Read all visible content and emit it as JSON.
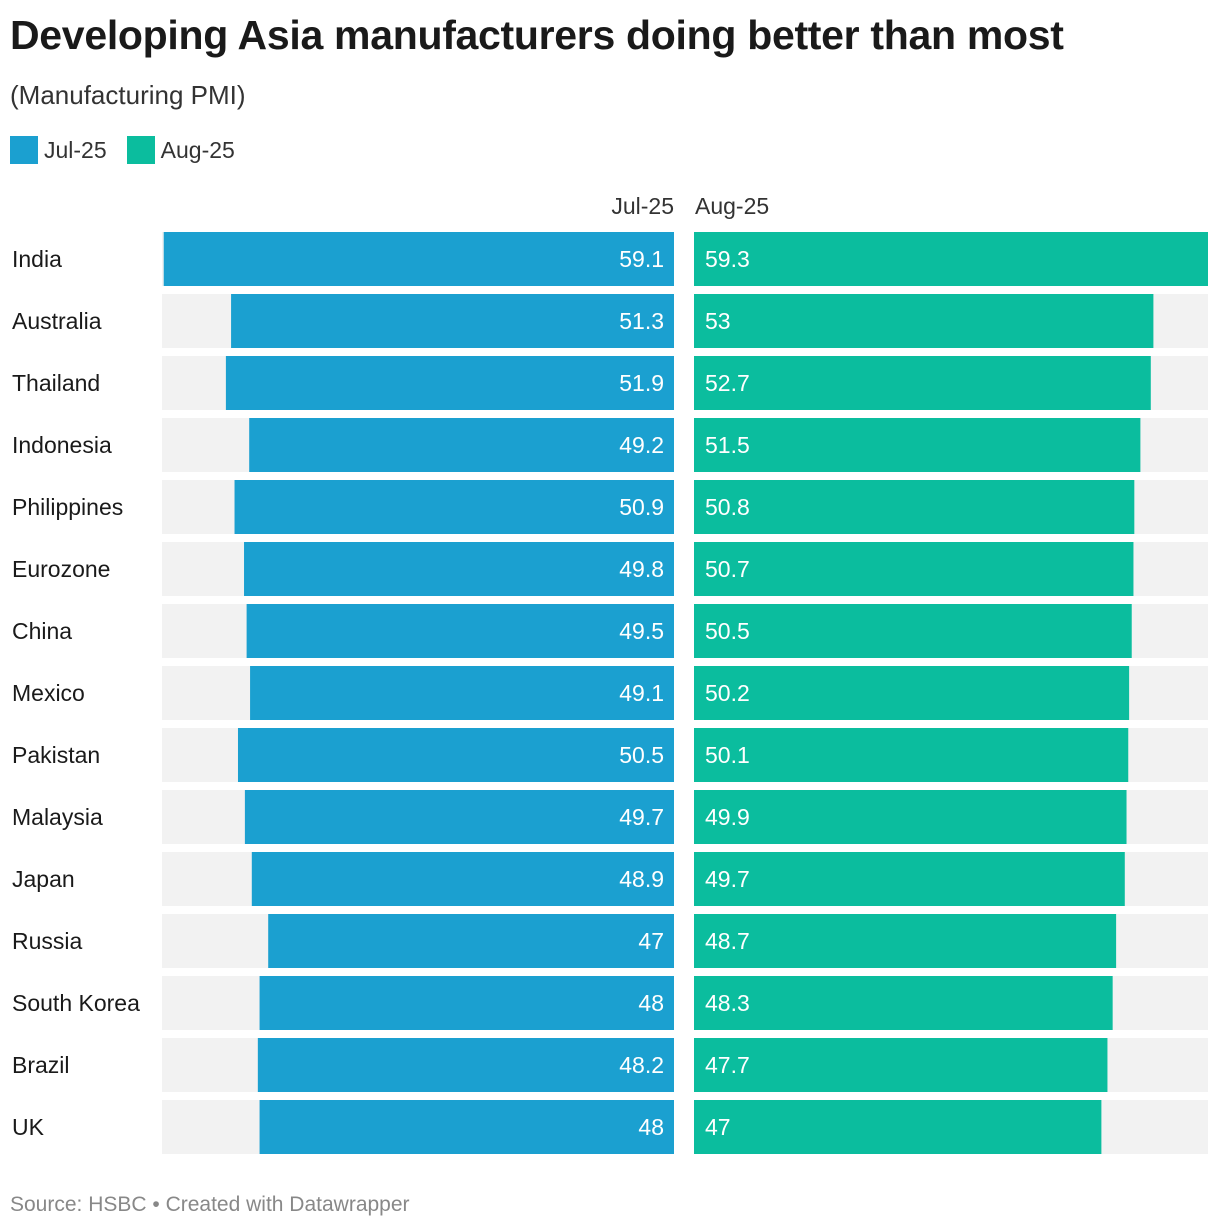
{
  "title": "Developing Asia manufacturers doing better than most",
  "subtitle": "(Manufacturing PMI)",
  "legend": [
    {
      "label": "Jul-25",
      "color": "#1ba0d0"
    },
    {
      "label": "Aug-25",
      "color": "#0bbd9e"
    }
  ],
  "columns": {
    "jul": "Jul-25",
    "aug": "Aug-25"
  },
  "source": "Source: HSBC • Created with Datawrapper",
  "colors": {
    "jul": "#1ba0d0",
    "aug": "#0bbd9e",
    "track": "#f2f2f2",
    "label_on_bar": "#ffffff",
    "row_label": "#1a1a1a"
  },
  "chart_data": {
    "type": "bar",
    "orientation": "horizontal",
    "title": "Developing Asia manufacturers doing better than most",
    "subtitle": "(Manufacturing PMI)",
    "categories": [
      "India",
      "Australia",
      "Thailand",
      "Indonesia",
      "Philippines",
      "Eurozone",
      "China",
      "Mexico",
      "Pakistan",
      "Malaysia",
      "Japan",
      "Russia",
      "South Korea",
      "Brazil",
      "UK"
    ],
    "series": [
      {
        "name": "Jul-25",
        "values": [
          59.1,
          51.3,
          51.9,
          49.2,
          50.9,
          49.8,
          49.5,
          49.1,
          50.5,
          49.7,
          48.9,
          47,
          48,
          48.2,
          48
        ]
      },
      {
        "name": "Aug-25",
        "values": [
          59.3,
          53,
          52.7,
          51.5,
          50.8,
          50.7,
          50.5,
          50.2,
          50.1,
          49.9,
          49.7,
          48.7,
          48.3,
          47.7,
          47
        ]
      }
    ],
    "xlim": [
      0,
      59.3
    ],
    "legend_position": "top-left",
    "grid": false
  }
}
